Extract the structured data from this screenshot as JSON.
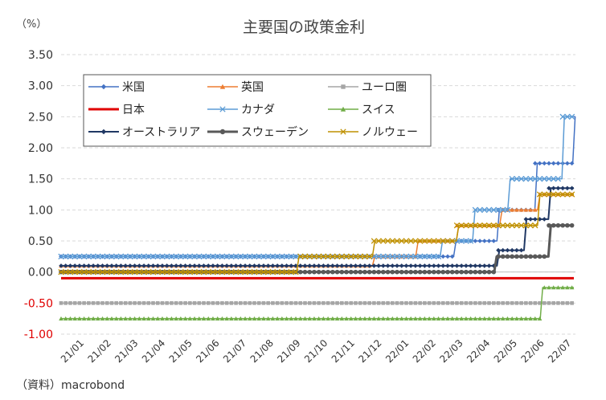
{
  "chart_data": {
    "type": "line",
    "title": "主要国の政策金利",
    "unit_label": "（%）",
    "source": "（資料）macrobond",
    "ylim": [
      -1.0,
      3.5
    ],
    "yticks": [
      3.5,
      3.0,
      2.5,
      2.0,
      1.5,
      1.0,
      0.5,
      0.0,
      -0.5,
      -1.0
    ],
    "ytick_labels": [
      "3.50",
      "3.00",
      "2.50",
      "2.00",
      "1.50",
      "1.00",
      "0.50",
      "0.00",
      "-0.50",
      "-1.00"
    ],
    "x_categories": [
      "21/01",
      "21/02",
      "21/03",
      "21/04",
      "21/05",
      "21/06",
      "21/07",
      "21/08",
      "21/09",
      "21/10",
      "21/11",
      "21/12",
      "22/01",
      "22/02",
      "22/03",
      "22/04",
      "22/05",
      "22/06",
      "22/07"
    ],
    "x_range_months": [
      0,
      19
    ],
    "series": [
      {
        "name": "米国",
        "color": "#4472C4",
        "marker": "diamond",
        "steps": [
          [
            0,
            0.25
          ],
          [
            14.5,
            0.5
          ],
          [
            16.1,
            1.0
          ],
          [
            17.5,
            1.75
          ],
          [
            18.9,
            2.5
          ]
        ]
      },
      {
        "name": "英国",
        "color": "#ED7D31",
        "marker": "triangle",
        "steps": [
          [
            0,
            0.1
          ],
          [
            11.5,
            0.25
          ],
          [
            13.1,
            0.5
          ],
          [
            14.6,
            0.75
          ],
          [
            16.2,
            1.0
          ],
          [
            17.6,
            1.25
          ]
        ]
      },
      {
        "name": "ユーロ圏",
        "color": "#A5A5A5",
        "marker": "square",
        "steps": [
          [
            0,
            -0.5
          ]
        ]
      },
      {
        "name": "日本",
        "color": "#E00000",
        "marker": "none",
        "steps": [
          [
            0,
            -0.1
          ]
        ]
      },
      {
        "name": "カナダ",
        "color": "#5B9BD5",
        "marker": "x",
        "steps": [
          [
            0,
            0.25
          ],
          [
            14.0,
            0.5
          ],
          [
            15.2,
            1.0
          ],
          [
            16.5,
            1.5
          ],
          [
            18.5,
            2.5
          ]
        ]
      },
      {
        "name": "スイス",
        "color": "#70AD47",
        "marker": "triangle",
        "steps": [
          [
            0,
            -0.75
          ],
          [
            17.7,
            -0.25
          ]
        ]
      },
      {
        "name": "オーストラリア",
        "color": "#203864",
        "marker": "diamond",
        "steps": [
          [
            0,
            0.1
          ],
          [
            16.1,
            0.35
          ],
          [
            17.1,
            0.85
          ],
          [
            18.0,
            1.35
          ]
        ]
      },
      {
        "name": "スウェーデン",
        "color": "#595959",
        "marker": "circle",
        "steps": [
          [
            0,
            0.0
          ],
          [
            16.0,
            0.25
          ],
          [
            18.0,
            0.75
          ]
        ]
      },
      {
        "name": "ノルウェー",
        "color": "#BF9000",
        "marker": "x",
        "steps": [
          [
            0,
            0.0
          ],
          [
            8.7,
            0.25
          ],
          [
            11.5,
            0.5
          ],
          [
            14.6,
            0.75
          ],
          [
            17.6,
            1.25
          ]
        ]
      }
    ]
  }
}
